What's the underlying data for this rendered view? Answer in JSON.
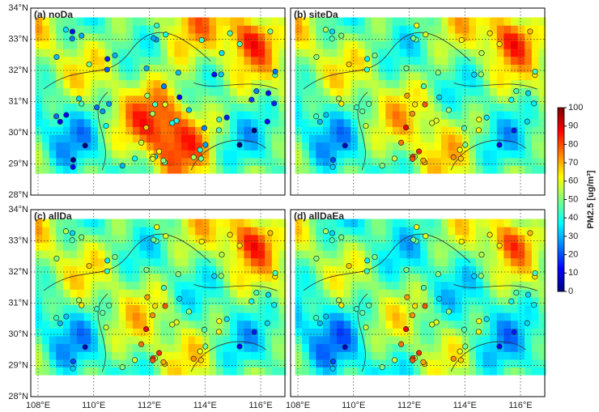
{
  "panels": [
    {
      "label": "(a) noDa"
    },
    {
      "label": "(b) siteDa"
    },
    {
      "label": "(c) allDa"
    },
    {
      "label": "(d) allDaEa"
    }
  ],
  "lat_ticks": [
    {
      "value": 28,
      "label": "28°N"
    },
    {
      "value": 29,
      "label": "29°N"
    },
    {
      "value": 30,
      "label": "30°N"
    },
    {
      "value": 31,
      "label": "31°N"
    },
    {
      "value": 32,
      "label": "32°N"
    },
    {
      "value": 33,
      "label": "33°N"
    },
    {
      "value": 34,
      "label": "34°N"
    }
  ],
  "lon_ticks": [
    {
      "value": 108,
      "label": "108°E"
    },
    {
      "value": 110,
      "label": "110°E"
    },
    {
      "value": 112,
      "label": "112°E"
    },
    {
      "value": 114,
      "label": "114°E"
    },
    {
      "value": 116,
      "label": "116°E"
    }
  ],
  "colorbar": {
    "label": "PM2.5 [ug/m³]",
    "lim": [
      0,
      100
    ],
    "ticks": [
      0,
      10,
      20,
      30,
      40,
      50,
      60,
      70,
      80,
      90,
      100
    ]
  }
}
